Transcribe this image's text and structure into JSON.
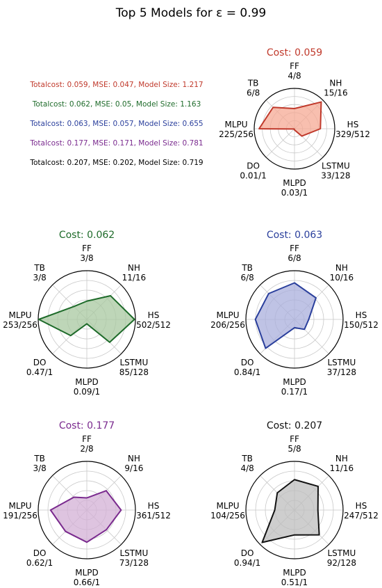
{
  "title": "Top 5 Models for ε = 0.99",
  "legend": [
    {
      "text": "Totalcost: 0.059, MSE: 0.047, Model Size: 1.217",
      "color": "#c0392b"
    },
    {
      "text": "Totalcost: 0.062, MSE: 0.05, Model Size: 1.163",
      "color": "#1e6b2a"
    },
    {
      "text": "Totalcost: 0.063, MSE: 0.057, Model Size: 0.655",
      "color": "#2a3f9c"
    },
    {
      "text": "Totalcost: 0.177, MSE: 0.171, Model Size: 0.781",
      "color": "#7a2a8e"
    },
    {
      "text": "Totalcost: 0.207, MSE: 0.202, Model Size: 0.719",
      "color": "#000000"
    }
  ],
  "chart_data": [
    {
      "type": "radar",
      "title": "Cost: 0.059",
      "color": "#c0392b",
      "fill": "#f5a994",
      "axes": [
        "FF",
        "NH",
        "HS",
        "LSTMU",
        "MLPD",
        "DO",
        "MLPU",
        "TB"
      ],
      "value_labels": [
        "4/8",
        "15/16",
        "329/512",
        "33/128",
        "0.03/1",
        "0.01/1",
        "225/256",
        "6/8"
      ],
      "values": [
        0.5,
        0.9375,
        0.643,
        0.258,
        0.03,
        0.01,
        0.879,
        0.75
      ]
    },
    {
      "type": "radar",
      "title": "Cost: 0.062",
      "color": "#1e6b2a",
      "fill": "#a8c8a0",
      "axes": [
        "FF",
        "NH",
        "HS",
        "LSTMU",
        "MLPD",
        "DO",
        "MLPU",
        "TB"
      ],
      "value_labels": [
        "3/8",
        "11/16",
        "502/512",
        "85/128",
        "0.09/1",
        "0.47/1",
        "253/256",
        "3/8"
      ],
      "values": [
        0.375,
        0.6875,
        0.98,
        0.664,
        0.09,
        0.47,
        0.988,
        0.375
      ]
    },
    {
      "type": "radar",
      "title": "Cost: 0.063",
      "color": "#2a3f9c",
      "fill": "#a9afdc",
      "axes": [
        "FF",
        "NH",
        "HS",
        "LSTMU",
        "MLPD",
        "DO",
        "MLPU",
        "TB"
      ],
      "value_labels": [
        "6/8",
        "10/16",
        "150/512",
        "37/128",
        "0.17/1",
        "0.84/1",
        "206/256",
        "6/8"
      ],
      "values": [
        0.75,
        0.625,
        0.293,
        0.289,
        0.17,
        0.84,
        0.805,
        0.75
      ]
    },
    {
      "type": "radar",
      "title": "Cost: 0.177",
      "color": "#7a2a8e",
      "fill": "#d3b0d6",
      "axes": [
        "FF",
        "NH",
        "HS",
        "LSTMU",
        "MLPD",
        "DO",
        "MLPU",
        "TB"
      ],
      "value_labels": [
        "2/8",
        "9/16",
        "361/512",
        "73/128",
        "0.66/1",
        "0.62/1",
        "191/256",
        "3/8"
      ],
      "values": [
        0.25,
        0.5625,
        0.705,
        0.57,
        0.66,
        0.62,
        0.746,
        0.375
      ]
    },
    {
      "type": "radar",
      "title": "Cost: 0.207",
      "color": "#111111",
      "fill": "#bdbdbd",
      "axes": [
        "FF",
        "NH",
        "HS",
        "LSTMU",
        "MLPD",
        "DO",
        "MLPU",
        "TB"
      ],
      "value_labels": [
        "5/8",
        "11/16",
        "247/512",
        "92/128",
        "0.51/1",
        "0.94/1",
        "104/256",
        "4/8"
      ],
      "values": [
        0.625,
        0.6875,
        0.482,
        0.719,
        0.51,
        0.94,
        0.406,
        0.5
      ]
    }
  ]
}
